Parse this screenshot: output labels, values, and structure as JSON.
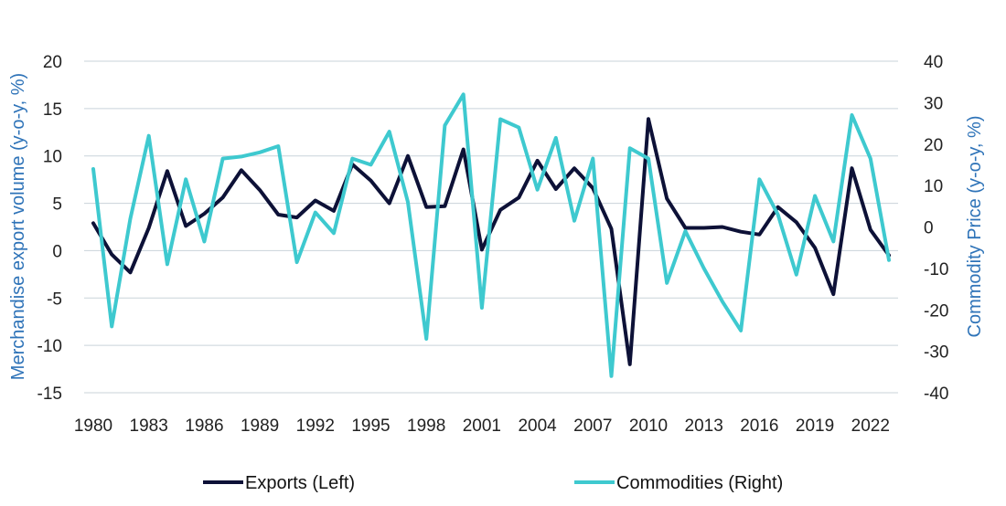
{
  "chart_data": {
    "type": "line",
    "title": "",
    "xlabel": "",
    "ylabel_left": "Merchandise export volume (y-o-y, %)",
    "ylabel_right": "Commodity Price (y-o-y, %)",
    "ylim_left": [
      -15,
      20
    ],
    "ylim_right": [
      -40,
      40
    ],
    "yticks_left": [
      20,
      15,
      10,
      5,
      0,
      -5,
      -10,
      -15
    ],
    "yticks_right": [
      40,
      30,
      20,
      10,
      0,
      -10,
      -20,
      -30,
      -40
    ],
    "xticks": [
      1980,
      1983,
      1986,
      1989,
      1992,
      1995,
      1998,
      2001,
      2004,
      2007,
      2010,
      2013,
      2016,
      2019,
      2022
    ],
    "xlim": [
      1980,
      2023
    ],
    "grid": true,
    "legend_position": "bottom",
    "x": [
      1980,
      1981,
      1982,
      1983,
      1984,
      1985,
      1986,
      1987,
      1988,
      1989,
      1990,
      1991,
      1992,
      1993,
      1994,
      1995,
      1996,
      1997,
      1998,
      1999,
      2000,
      2001,
      2002,
      2003,
      2004,
      2005,
      2006,
      2007,
      2008,
      2009,
      2010,
      2011,
      2012,
      2013,
      2014,
      2015,
      2016,
      2017,
      2018,
      2019,
      2020,
      2021,
      2022,
      2023
    ],
    "series": [
      {
        "name": "Exports (Left)",
        "axis": "left",
        "color": "#0d1137",
        "values": [
          2.9,
          -0.4,
          -2.3,
          2.4,
          8.4,
          2.6,
          3.9,
          5.6,
          8.5,
          6.4,
          3.8,
          3.5,
          5.3,
          4.2,
          9.1,
          7.4,
          5.0,
          10.0,
          4.6,
          4.7,
          10.7,
          0.1,
          4.3,
          5.6,
          9.5,
          6.5,
          8.7,
          6.6,
          2.3,
          -12.0,
          13.9,
          5.5,
          2.4,
          2.4,
          2.5,
          2.0,
          1.7,
          4.6,
          3.0,
          0.3,
          -4.6,
          8.7,
          2.2,
          -0.5
        ]
      },
      {
        "name": "Commodities (Right)",
        "axis": "right",
        "color": "#3ec9cf",
        "values": [
          14.0,
          -24.0,
          2.0,
          22.0,
          -9.0,
          11.5,
          -3.5,
          16.5,
          17.0,
          18.0,
          19.5,
          -8.5,
          3.5,
          -1.5,
          16.5,
          15.0,
          23.0,
          6.0,
          -27.0,
          24.5,
          32.0,
          -19.5,
          26.0,
          24.0,
          9.0,
          21.5,
          1.5,
          16.5,
          -36.0,
          19.0,
          16.5,
          -13.5,
          -1.0,
          -10.0,
          -18.0,
          -25.0,
          11.5,
          3.0,
          -11.5,
          7.5,
          -3.5,
          27.0,
          16.5,
          -8.0
        ]
      }
    ]
  },
  "legend": [
    {
      "label": "Exports (Left)",
      "color": "#0d1137"
    },
    {
      "label": "Commodities (Right)",
      "color": "#3ec9cf"
    }
  ]
}
